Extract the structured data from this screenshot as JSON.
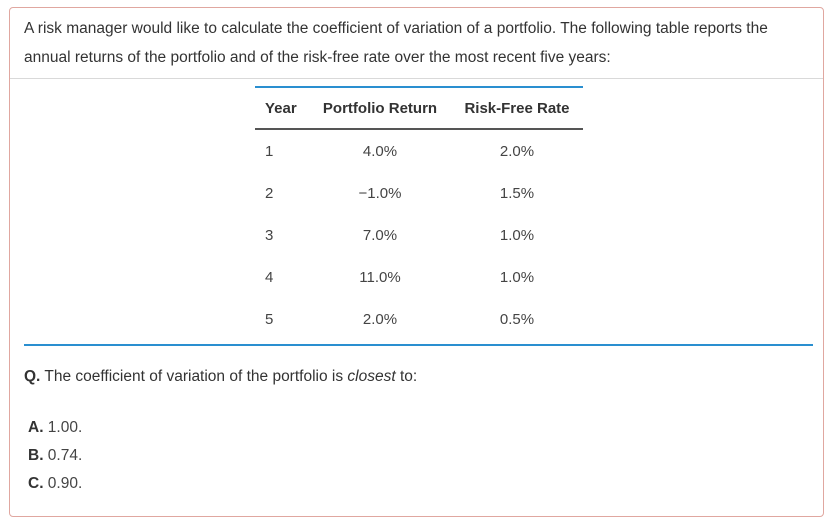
{
  "intro": {
    "text": "A risk manager would like to calculate the coefficient of variation of a portfolio. The following table reports the annual returns of the portfolio and of the risk-free rate over the most recent five years:"
  },
  "table": {
    "headers": [
      "Year",
      "Portfolio Return",
      "Risk-Free Rate"
    ],
    "rows": [
      [
        "1",
        "4.0%",
        "2.0%"
      ],
      [
        "2",
        "−1.0%",
        "1.5%"
      ],
      [
        "3",
        "7.0%",
        "1.0%"
      ],
      [
        "4",
        "11.0%",
        "1.0%"
      ],
      [
        "5",
        "2.0%",
        "0.5%"
      ]
    ]
  },
  "question": {
    "marker": "Q.",
    "text_before": " The coefficient of variation of the portfolio is ",
    "emphasis": "closest",
    "text_after": " to:"
  },
  "answers": [
    {
      "letter": "A.",
      "text": " 1.00."
    },
    {
      "letter": "B.",
      "text": " 0.74."
    },
    {
      "letter": "C.",
      "text": " 0.90."
    }
  ],
  "colors": {
    "accent_blue": "#2a8fd0",
    "frame_border": "#e0a7a0"
  }
}
